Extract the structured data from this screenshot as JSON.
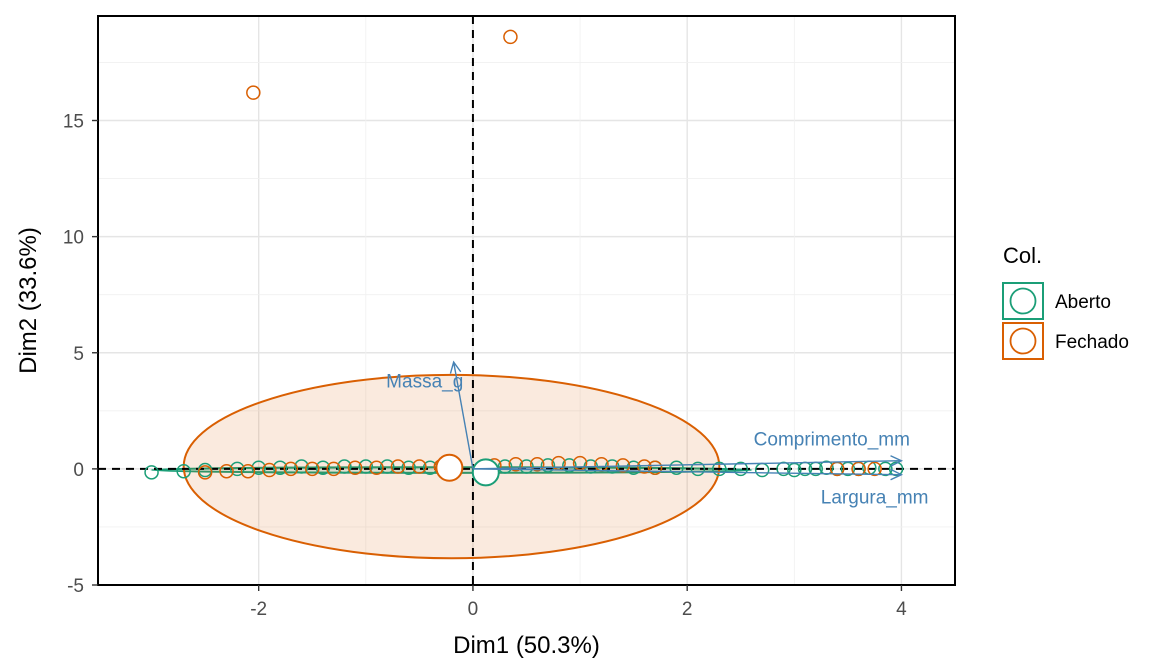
{
  "chart_data": {
    "type": "scatter",
    "subtype": "PCA biplot",
    "title": "",
    "xlabel": "Dim1 (50.3%)",
    "ylabel": "Dim2 (33.6%)",
    "xlim": [
      -3.5,
      4.5
    ],
    "ylim": [
      -5,
      19.5
    ],
    "x_ticks": [
      -2,
      0,
      2,
      4
    ],
    "x_tick_labels": [
      "-2",
      "0",
      "2",
      "4"
    ],
    "y_ticks": [
      -5,
      0,
      5,
      10,
      15
    ],
    "y_tick_labels": [
      "-5",
      "0",
      "5",
      "10",
      "15"
    ],
    "grid": true,
    "reference_lines": {
      "x": 0,
      "y": 0,
      "style": "dashed"
    },
    "legend": {
      "title": "Col.",
      "position": "right",
      "entries": [
        {
          "name": "Aberto",
          "color": "#1b9e77"
        },
        {
          "name": "Fechado",
          "color": "#d95f02"
        }
      ]
    },
    "series": [
      {
        "name": "Aberto",
        "color": "#1b9e77",
        "points": [
          [
            -3.0,
            -0.15
          ],
          [
            -2.7,
            -0.1
          ],
          [
            -2.5,
            -0.05
          ],
          [
            -2.2,
            0.0
          ],
          [
            -2.0,
            0.05
          ],
          [
            -1.8,
            0.05
          ],
          [
            -1.6,
            0.1
          ],
          [
            -1.4,
            0.05
          ],
          [
            -1.2,
            0.1
          ],
          [
            -1.0,
            0.1
          ],
          [
            -0.8,
            0.1
          ],
          [
            -0.6,
            0.05
          ],
          [
            -0.4,
            0.05
          ],
          [
            -0.2,
            0.0
          ],
          [
            0.1,
            0.0
          ],
          [
            0.3,
            0.1
          ],
          [
            0.5,
            0.1
          ],
          [
            0.7,
            0.15
          ],
          [
            0.9,
            0.15
          ],
          [
            1.1,
            0.1
          ],
          [
            1.3,
            0.1
          ],
          [
            1.5,
            0.05
          ],
          [
            1.7,
            0.05
          ],
          [
            1.9,
            0.05
          ],
          [
            2.1,
            0.0
          ],
          [
            2.3,
            0.0
          ],
          [
            2.5,
            0.0
          ],
          [
            2.7,
            -0.05
          ],
          [
            2.9,
            0.0
          ],
          [
            3.0,
            -0.05
          ],
          [
            3.1,
            0.0
          ],
          [
            3.2,
            0.0
          ],
          [
            3.3,
            0.05
          ],
          [
            3.4,
            0.0
          ],
          [
            3.5,
            0.0
          ],
          [
            3.6,
            0.0
          ],
          [
            3.7,
            0.05
          ],
          [
            3.85,
            0.0
          ],
          [
            3.95,
            0.0
          ]
        ],
        "centroid": [
          0.12,
          -0.15
        ],
        "ellipse": {
          "center": [
            -0.2,
            -0.05
          ],
          "x_radius": 2.8,
          "y_radius": 0.12
        }
      },
      {
        "name": "Fechado",
        "color": "#d95f02",
        "points": [
          [
            -2.05,
            16.2
          ],
          [
            0.35,
            18.6
          ],
          [
            -2.5,
            -0.15
          ],
          [
            -2.3,
            -0.1
          ],
          [
            -2.1,
            -0.1
          ],
          [
            -1.9,
            -0.05
          ],
          [
            -1.7,
            0.0
          ],
          [
            -1.5,
            0.0
          ],
          [
            -1.3,
            0.0
          ],
          [
            -1.1,
            0.05
          ],
          [
            -0.9,
            0.05
          ],
          [
            -0.7,
            0.1
          ],
          [
            -0.5,
            0.1
          ],
          [
            -0.3,
            0.1
          ],
          [
            0.2,
            0.15
          ],
          [
            0.4,
            0.2
          ],
          [
            0.6,
            0.2
          ],
          [
            0.8,
            0.25
          ],
          [
            1.0,
            0.25
          ],
          [
            1.2,
            0.2
          ],
          [
            1.4,
            0.15
          ],
          [
            1.6,
            0.1
          ],
          [
            1.7,
            0.05
          ],
          [
            3.4,
            0.0
          ],
          [
            3.6,
            0.0
          ],
          [
            3.75,
            0.0
          ]
        ],
        "centroid": [
          -0.22,
          0.05
        ],
        "ellipse": {
          "center": [
            -0.2,
            0.1
          ],
          "x_radius": 2.5,
          "y_radius": 3.95
        }
      }
    ],
    "variables": [
      {
        "name": "Massa_g",
        "x": -0.18,
        "y": 4.6,
        "label_x": -0.45,
        "label_y": 3.5
      },
      {
        "name": "Comprimento_mm",
        "x": 4.0,
        "y": 0.35,
        "label_x": 3.35,
        "label_y": 1.0
      },
      {
        "name": "Largura_mm",
        "x": 4.0,
        "y": -0.25,
        "label_x": 3.75,
        "label_y": -1.5
      }
    ]
  }
}
